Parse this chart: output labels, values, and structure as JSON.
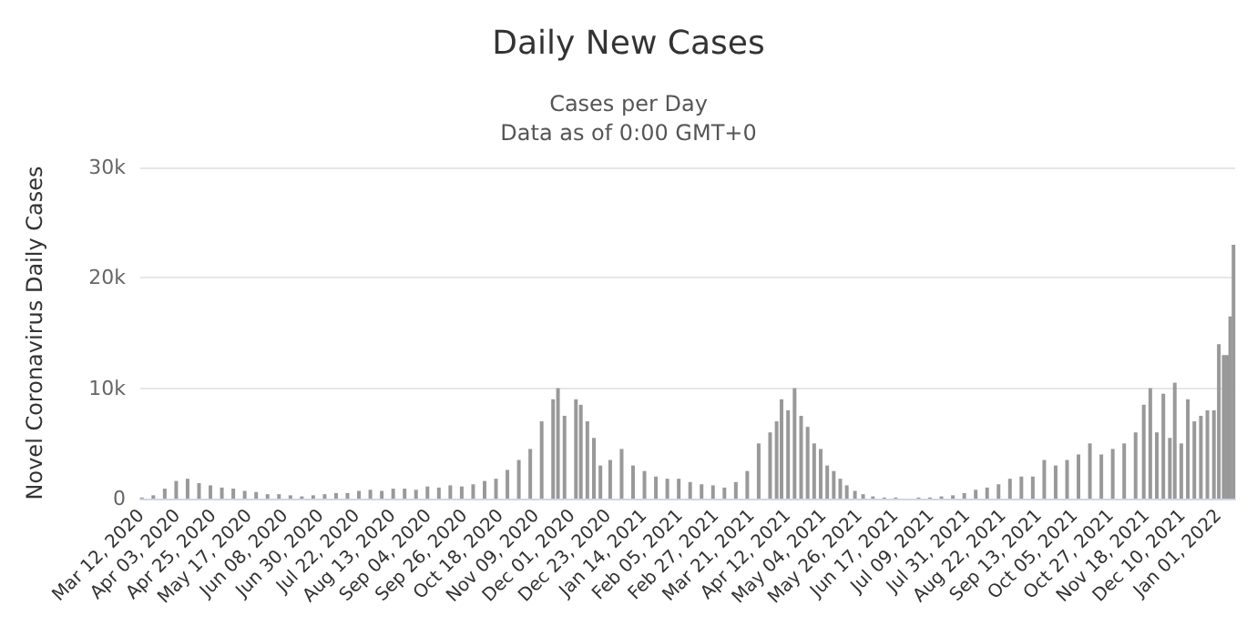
{
  "chart_data": {
    "type": "bar",
    "title": "Daily New Cases",
    "subtitle": "Cases per Day\nData as of 0:00 GMT+0",
    "ylabel": "Novel Coronavirus Daily Cases",
    "x": [
      "2020-03-12",
      "2020-03-19",
      "2020-03-26",
      "2020-04-02",
      "2020-04-09",
      "2020-04-16",
      "2020-04-23",
      "2020-04-30",
      "2020-05-07",
      "2020-05-14",
      "2020-05-21",
      "2020-05-28",
      "2020-06-04",
      "2020-06-11",
      "2020-06-18",
      "2020-06-25",
      "2020-07-02",
      "2020-07-09",
      "2020-07-16",
      "2020-07-23",
      "2020-07-30",
      "2020-08-06",
      "2020-08-13",
      "2020-08-20",
      "2020-08-27",
      "2020-09-03",
      "2020-09-10",
      "2020-09-17",
      "2020-09-24",
      "2020-10-01",
      "2020-10-08",
      "2020-10-15",
      "2020-10-22",
      "2020-10-29",
      "2020-11-05",
      "2020-11-12",
      "2020-11-19",
      "2020-11-22",
      "2020-11-26",
      "2020-12-03",
      "2020-12-06",
      "2020-12-10",
      "2020-12-14",
      "2020-12-18",
      "2020-12-24",
      "2020-12-31",
      "2021-01-07",
      "2021-01-14",
      "2021-01-21",
      "2021-01-28",
      "2021-02-04",
      "2021-02-11",
      "2021-02-18",
      "2021-02-25",
      "2021-03-04",
      "2021-03-11",
      "2021-03-18",
      "2021-03-25",
      "2021-04-01",
      "2021-04-05",
      "2021-04-08",
      "2021-04-12",
      "2021-04-16",
      "2021-04-20",
      "2021-04-24",
      "2021-04-28",
      "2021-05-02",
      "2021-05-06",
      "2021-05-10",
      "2021-05-14",
      "2021-05-18",
      "2021-05-23",
      "2021-05-28",
      "2021-06-03",
      "2021-06-10",
      "2021-06-17",
      "2021-06-24",
      "2021-07-01",
      "2021-07-08",
      "2021-07-15",
      "2021-07-22",
      "2021-07-29",
      "2021-08-05",
      "2021-08-12",
      "2021-08-19",
      "2021-08-26",
      "2021-09-02",
      "2021-09-09",
      "2021-09-16",
      "2021-09-23",
      "2021-09-30",
      "2021-10-07",
      "2021-10-14",
      "2021-10-21",
      "2021-10-28",
      "2021-11-04",
      "2021-11-11",
      "2021-11-16",
      "2021-11-20",
      "2021-11-24",
      "2021-11-28",
      "2021-12-02",
      "2021-12-05",
      "2021-12-09",
      "2021-12-13",
      "2021-12-17",
      "2021-12-21",
      "2021-12-25",
      "2021-12-29",
      "2022-01-01",
      "2022-01-04",
      "2022-01-06",
      "2022-01-08",
      "2022-01-10"
    ],
    "values": [
      100,
      300,
      900,
      1600,
      1800,
      1400,
      1200,
      1000,
      900,
      700,
      600,
      400,
      400,
      300,
      200,
      300,
      400,
      500,
      500,
      700,
      800,
      700,
      900,
      900,
      800,
      1100,
      1000,
      1200,
      1100,
      1300,
      1600,
      1800,
      2600,
      3500,
      4500,
      7000,
      9000,
      10000,
      7500,
      9000,
      8500,
      7000,
      5500,
      3000,
      3500,
      4500,
      3000,
      2500,
      2000,
      1800,
      1800,
      1500,
      1300,
      1200,
      1000,
      1500,
      2500,
      5000,
      6000,
      7000,
      9000,
      8000,
      10000,
      7500,
      6500,
      5000,
      4500,
      3000,
      2500,
      1800,
      1200,
      700,
      400,
      200,
      100,
      100,
      0,
      100,
      100,
      200,
      300,
      500,
      800,
      1000,
      1300,
      1800,
      2000,
      2000,
      3500,
      3000,
      3500,
      4000,
      5000,
      4000,
      4500,
      5000,
      6000,
      8500,
      10000,
      6000,
      9500,
      5500,
      10500,
      5000,
      9000,
      7000,
      7500,
      8000,
      8000,
      14000,
      13000,
      13000,
      16500,
      23000
    ],
    "color": "#999999",
    "xlim": [
      "2020-03-11",
      "2022-01-11"
    ],
    "xticks": [
      {
        "value": "2020-03-12",
        "label": "Mar 12, 2020"
      },
      {
        "value": "2020-04-03",
        "label": "Apr 03, 2020"
      },
      {
        "value": "2020-04-25",
        "label": "Apr 25, 2020"
      },
      {
        "value": "2020-05-17",
        "label": "May 17, 2020"
      },
      {
        "value": "2020-06-08",
        "label": "Jun 08, 2020"
      },
      {
        "value": "2020-06-30",
        "label": "Jun 30, 2020"
      },
      {
        "value": "2020-07-22",
        "label": "Jul 22, 2020"
      },
      {
        "value": "2020-08-13",
        "label": "Aug 13, 2020"
      },
      {
        "value": "2020-09-04",
        "label": "Sep 04, 2020"
      },
      {
        "value": "2020-09-26",
        "label": "Sep 26, 2020"
      },
      {
        "value": "2020-10-18",
        "label": "Oct 18, 2020"
      },
      {
        "value": "2020-11-09",
        "label": "Nov 09, 2020"
      },
      {
        "value": "2020-12-01",
        "label": "Dec 01, 2020"
      },
      {
        "value": "2020-12-23",
        "label": "Dec 23, 2020"
      },
      {
        "value": "2021-01-14",
        "label": "Jan 14, 2021"
      },
      {
        "value": "2021-02-05",
        "label": "Feb 05, 2021"
      },
      {
        "value": "2021-02-27",
        "label": "Feb 27, 2021"
      },
      {
        "value": "2021-03-21",
        "label": "Mar 21, 2021"
      },
      {
        "value": "2021-04-12",
        "label": "Apr 12, 2021"
      },
      {
        "value": "2021-05-04",
        "label": "May 04, 2021"
      },
      {
        "value": "2021-05-26",
        "label": "May 26, 2021"
      },
      {
        "value": "2021-06-17",
        "label": "Jun 17, 2021"
      },
      {
        "value": "2021-07-09",
        "label": "Jul 09, 2021"
      },
      {
        "value": "2021-07-31",
        "label": "Jul 31, 2021"
      },
      {
        "value": "2021-08-22",
        "label": "Aug 22, 2021"
      },
      {
        "value": "2021-09-13",
        "label": "Sep 13, 2021"
      },
      {
        "value": "2021-10-05",
        "label": "Oct 05, 2021"
      },
      {
        "value": "2021-10-27",
        "label": "Oct 27, 2021"
      },
      {
        "value": "2021-11-18",
        "label": "Nov 18, 2021"
      },
      {
        "value": "2021-12-10",
        "label": "Dec 10, 2021"
      },
      {
        "value": "2022-01-01",
        "label": "Jan 01, 2022"
      }
    ],
    "ylim": [
      0,
      30000
    ],
    "yticks": [
      {
        "value": 0,
        "label": "0"
      },
      {
        "value": 10000,
        "label": "10k"
      },
      {
        "value": 20000,
        "label": "20k"
      },
      {
        "value": 30000,
        "label": "30k"
      }
    ],
    "grid": "y"
  }
}
